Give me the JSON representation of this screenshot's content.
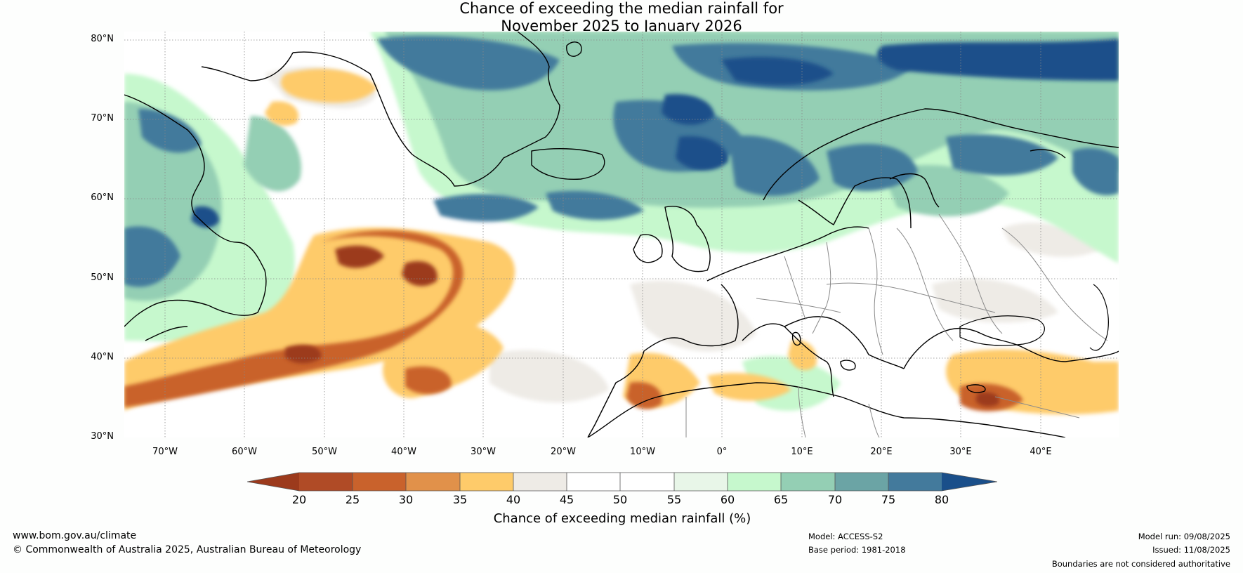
{
  "title_line1": "Chance of exceeding the median rainfall for",
  "title_line2": "November 2025 to January 2026",
  "lat_labels": [
    "80°N",
    "70°N",
    "60°N",
    "50°N",
    "40°N",
    "30°N"
  ],
  "lon_labels": [
    "70°W",
    "60°W",
    "50°W",
    "40°W",
    "30°W",
    "20°W",
    "10°W",
    "0°",
    "10°E",
    "20°E",
    "30°E",
    "40°E"
  ],
  "colorbar": {
    "ticks": [
      "20",
      "25",
      "30",
      "35",
      "40",
      "45",
      "50",
      "55",
      "60",
      "65",
      "70",
      "75",
      "80"
    ],
    "label": "Chance of exceeding median rainfall (%)",
    "colors": {
      "lt20": "#9c3a1c",
      "b20_25": "#b04b26",
      "b25_30": "#c9622c",
      "b30_35": "#e1914a",
      "b35_40": "#fecb6a",
      "b40_45": "#eeebe6",
      "b45_50": "#ffffff",
      "b50_55": "#ffffff",
      "b55_60": "#e8f6e8",
      "b60_65": "#c6f8cd",
      "b65_70": "#94cfb4",
      "b70_75": "#6ba4a5",
      "b75_80": "#437a9c",
      "gt80": "#1a4f8a"
    }
  },
  "footer": {
    "website": "www.bom.gov.au/climate",
    "copyright": "© Commonwealth of Australia 2025, Australian Bureau of Meteorology",
    "model": "Model: ACCESS-S2",
    "base_period": "Base period: 1981-2018",
    "model_run": "Model run: 09/08/2025",
    "issued": "Issued: 11/08/2025",
    "disclaimer": "Boundaries are not considered authoritative"
  }
}
